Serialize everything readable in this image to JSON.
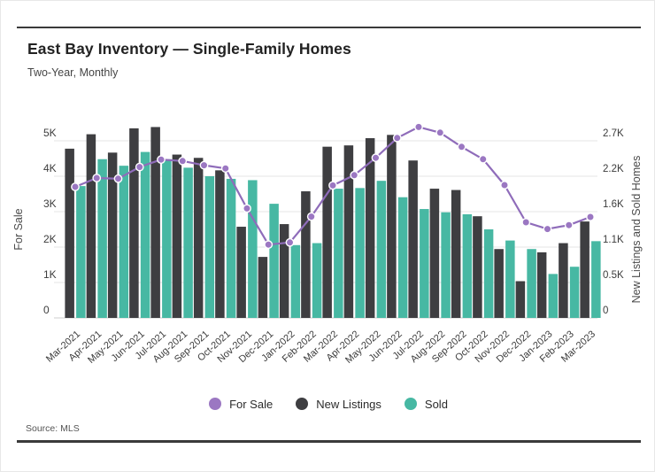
{
  "header": {
    "title": "East Bay Inventory — Single-Family Homes",
    "subtitle": "Two-Year, Monthly"
  },
  "footer": {
    "source": "Source: MLS"
  },
  "legend": {
    "items": [
      {
        "label": "For Sale",
        "color": "#9b77c2"
      },
      {
        "label": "New Listings",
        "color": "#3e3e41"
      },
      {
        "label": "Sold",
        "color": "#47b8a3"
      }
    ]
  },
  "chart_data": {
    "type": "combo-bar-line",
    "grid": true,
    "legend_position": "bottom",
    "categories": [
      "Mar-2021",
      "Apr-2021",
      "May-2021",
      "Jun-2021",
      "Jul-2021",
      "Aug-2021",
      "Sep-2021",
      "Oct-2021",
      "Nov-2021",
      "Dec-2021",
      "Jan-2022",
      "Feb-2022",
      "Mar-2022",
      "Apr-2022",
      "May-2022",
      "Jun-2022",
      "Jul-2022",
      "Aug-2022",
      "Sep-2022",
      "Oct-2022",
      "Nov-2022",
      "Dec-2022",
      "Jan-2023",
      "Feb-2023",
      "Mar-2023"
    ],
    "series": [
      {
        "name": "For Sale",
        "type": "line",
        "axis": "left",
        "color": "#8f6cba",
        "point_color": "#9b77c2",
        "values": [
          3700,
          3950,
          3930,
          4260,
          4470,
          4430,
          4310,
          4220,
          3090,
          2070,
          2130,
          2860,
          3740,
          4030,
          4520,
          5080,
          5390,
          5230,
          4830,
          4480,
          3750,
          2700,
          2510,
          2620,
          2850
        ]
      },
      {
        "name": "New Listings",
        "type": "bar",
        "axis": "right",
        "color": "#3e3e41",
        "values": [
          2580,
          2800,
          2520,
          2890,
          2910,
          2490,
          2440,
          2250,
          1390,
          930,
          1430,
          1930,
          2610,
          2630,
          2740,
          2790,
          2400,
          1970,
          1950,
          1550,
          1050,
          560,
          1000,
          1140,
          1470
        ]
      },
      {
        "name": "Sold",
        "type": "bar",
        "axis": "right",
        "color": "#47b8a3",
        "values": [
          2010,
          2420,
          2320,
          2530,
          2420,
          2290,
          2160,
          2120,
          2100,
          1740,
          1110,
          1140,
          1970,
          1980,
          2090,
          1840,
          1660,
          1610,
          1580,
          1350,
          1180,
          1050,
          670,
          780,
          1170
        ]
      }
    ],
    "left_axis": {
      "title": "For Sale",
      "max": 5000,
      "ticks": [
        {
          "value": 0,
          "label": "0"
        },
        {
          "value": 1000,
          "label": "1K"
        },
        {
          "value": 2000,
          "label": "2K"
        },
        {
          "value": 3000,
          "label": "3K"
        },
        {
          "value": 4000,
          "label": "4K"
        },
        {
          "value": 5000,
          "label": "5K"
        }
      ]
    },
    "right_axis": {
      "title": "New Listings and Sold Homes",
      "max": 2700,
      "ticks": [
        {
          "value": 0,
          "label": "0"
        },
        {
          "value": 540,
          "label": "0.5K"
        },
        {
          "value": 1080,
          "label": "1.1K"
        },
        {
          "value": 1620,
          "label": "1.6K"
        },
        {
          "value": 2160,
          "label": "2.2K"
        },
        {
          "value": 2700,
          "label": "2.7K"
        }
      ]
    }
  }
}
